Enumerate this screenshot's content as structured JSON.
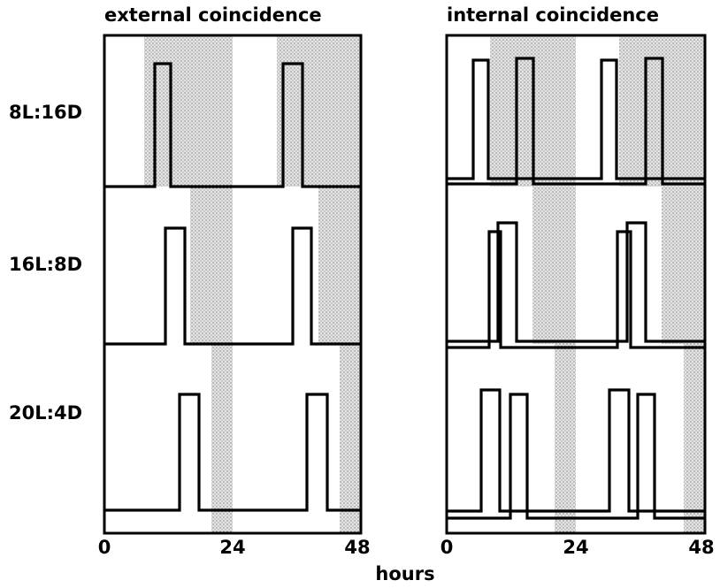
{
  "panels": [
    {
      "title": "external coincidence"
    },
    {
      "title": "internal coincidence"
    }
  ],
  "rows": [
    "8L:16D",
    "16L:8D",
    "20L:4D"
  ],
  "x_ticks": [
    "0",
    "24",
    "48"
  ],
  "x_label": "hours"
}
